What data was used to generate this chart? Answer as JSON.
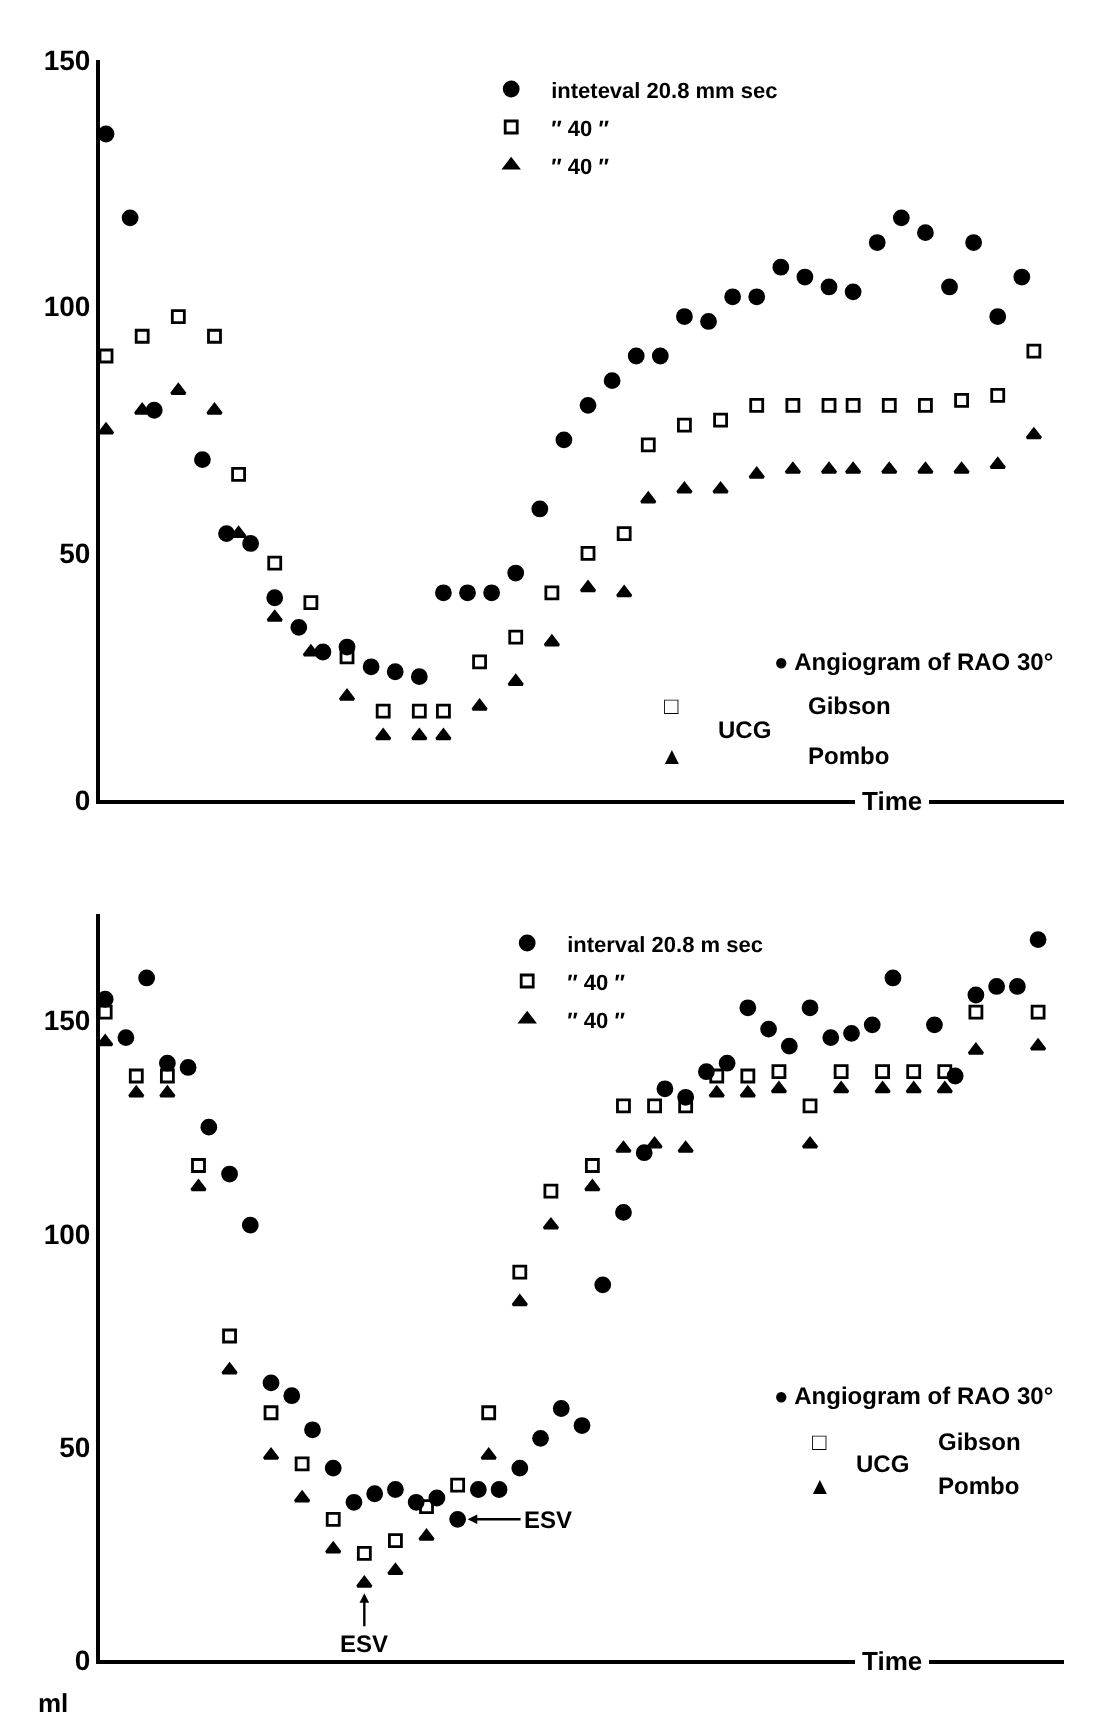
{
  "chart_data": [
    {
      "type": "scatter",
      "xlabel": "Time",
      "ylim": [
        0,
        150
      ],
      "yticks": [
        0,
        50,
        100,
        150
      ],
      "tick_labels": "y",
      "legend": "top",
      "categories": [
        null,
        null,
        null,
        null,
        null,
        null,
        null,
        null,
        null,
        null,
        null,
        null,
        null,
        null,
        null,
        null,
        null,
        null,
        null,
        null,
        null,
        null,
        null,
        null,
        null,
        null,
        null,
        null,
        null,
        null,
        null,
        null,
        null,
        null,
        null,
        null,
        null,
        null,
        null,
        null,
        null,
        null,
        null,
        null,
        null,
        null,
        null,
        null,
        null,
        null,
        null,
        null,
        null,
        null,
        null,
        null,
        null,
        null,
        null,
        null,
        null,
        null,
        null,
        null,
        null,
        null,
        null,
        null,
        null,
        null,
        null,
        null,
        null,
        null,
        null,
        null,
        null,
        null,
        null,
        null
      ],
      "series": [
        {
          "name": "inteteval 20.8 mm sec",
          "color": "#000000",
          "marker": "circle",
          "values": [
            135,
            null,
            118,
            null,
            79,
            null,
            null,
            null,
            69,
            null,
            54,
            null,
            52,
            null,
            41,
            null,
            35,
            null,
            30,
            null,
            31,
            null,
            27,
            null,
            26,
            null,
            25,
            null,
            42,
            null,
            42,
            null,
            42,
            null,
            46,
            null,
            59,
            null,
            73,
            null,
            80,
            null,
            85,
            null,
            90,
            null,
            90,
            null,
            98,
            null,
            97,
            null,
            102,
            null,
            102,
            null,
            108,
            null,
            106,
            null,
            104,
            null,
            103,
            null,
            113,
            null,
            118,
            null,
            115,
            null,
            104,
            null,
            113,
            null,
            98,
            null,
            106,
            null,
            null,
            null
          ]
        },
        {
          "name": "″ 40 ″",
          "color": "#000000",
          "marker": "square",
          "values": [
            90,
            null,
            null,
            94,
            null,
            null,
            98,
            null,
            null,
            94,
            null,
            66,
            null,
            null,
            48,
            null,
            null,
            40,
            null,
            null,
            29,
            null,
            null,
            18,
            null,
            null,
            18,
            null,
            18,
            null,
            null,
            28,
            null,
            null,
            33,
            null,
            null,
            42,
            null,
            null,
            50,
            null,
            null,
            54,
            null,
            72,
            null,
            null,
            76,
            null,
            null,
            77,
            null,
            null,
            80,
            null,
            null,
            80,
            null,
            null,
            80,
            null,
            80,
            null,
            null,
            80,
            null,
            null,
            80,
            null,
            null,
            81,
            null,
            null,
            82,
            null,
            null,
            91,
            null,
            null
          ]
        },
        {
          "name": "″ 40 ″",
          "color": "#000000",
          "marker": "triangle",
          "values": [
            75,
            null,
            null,
            79,
            null,
            null,
            83,
            null,
            null,
            79,
            null,
            54,
            null,
            null,
            37,
            null,
            null,
            30,
            null,
            null,
            21,
            null,
            null,
            13,
            null,
            null,
            13,
            null,
            13,
            null,
            null,
            19,
            null,
            null,
            24,
            null,
            null,
            32,
            null,
            null,
            43,
            null,
            null,
            42,
            null,
            61,
            null,
            null,
            63,
            null,
            null,
            63,
            null,
            null,
            66,
            null,
            null,
            67,
            null,
            null,
            67,
            null,
            67,
            null,
            null,
            67,
            null,
            null,
            67,
            null,
            null,
            67,
            null,
            null,
            68,
            null,
            null,
            74,
            null,
            null
          ]
        }
      ],
      "annotations": [
        "● Angiogram of RAO 30°",
        "□",
        "▲",
        "UCG",
        "Gibson",
        "Pombo"
      ]
    },
    {
      "type": "scatter",
      "xlabel": "Time",
      "ylabel": "ml",
      "ylim": [
        0,
        175
      ],
      "yticks": [
        0,
        50,
        100,
        150
      ],
      "tick_labels": "y",
      "legend": "top",
      "categories": [
        null,
        null,
        null,
        null,
        null,
        null,
        null,
        null,
        null,
        null,
        null,
        null,
        null,
        null,
        null,
        null,
        null,
        null,
        null,
        null,
        null,
        null,
        null,
        null,
        null,
        null,
        null,
        null,
        null,
        null,
        null,
        null,
        null,
        null,
        null,
        null,
        null,
        null,
        null,
        null,
        null,
        null,
        null,
        null,
        null,
        null,
        null,
        null,
        null,
        null,
        null,
        null,
        null,
        null,
        null,
        null,
        null,
        null,
        null,
        null,
        null,
        null,
        null,
        null,
        null,
        null,
        null,
        null,
        null,
        null,
        null,
        null,
        null,
        null,
        null,
        null,
        null,
        null,
        null,
        null,
        null,
        null,
        null,
        null,
        null,
        null,
        null,
        null,
        null,
        null,
        null,
        null,
        null
      ],
      "series": [
        {
          "name": "interval 20.8 m sec",
          "color": "#000000",
          "marker": "circle",
          "values": [
            155,
            null,
            146,
            null,
            160,
            null,
            140,
            null,
            139,
            null,
            125,
            null,
            114,
            null,
            102,
            null,
            65,
            null,
            62,
            null,
            54,
            null,
            45,
            null,
            37,
            null,
            39,
            null,
            40,
            null,
            37,
            null,
            38,
            null,
            33,
            null,
            40,
            null,
            40,
            null,
            45,
            null,
            52,
            null,
            59,
            null,
            55,
            null,
            88,
            null,
            105,
            null,
            119,
            null,
            134,
            null,
            132,
            null,
            138,
            null,
            140,
            null,
            153,
            null,
            148,
            null,
            144,
            null,
            153,
            null,
            146,
            null,
            147,
            null,
            149,
            null,
            160,
            null,
            null,
            null,
            149,
            null,
            137,
            null,
            156,
            null,
            158,
            null,
            158,
            null,
            169,
            null,
            null
          ]
        },
        {
          "name": "″ 40 ″",
          "color": "#000000",
          "marker": "square",
          "values": [
            152,
            null,
            null,
            137,
            null,
            null,
            137,
            null,
            null,
            116,
            null,
            null,
            76,
            null,
            null,
            null,
            58,
            null,
            null,
            46,
            null,
            null,
            33,
            null,
            null,
            25,
            null,
            null,
            28,
            null,
            null,
            36,
            null,
            null,
            41,
            null,
            null,
            58,
            null,
            null,
            91,
            null,
            null,
            110,
            null,
            null,
            null,
            116,
            null,
            null,
            130,
            null,
            null,
            130,
            null,
            null,
            130,
            null,
            null,
            137,
            null,
            null,
            137,
            null,
            null,
            138,
            null,
            null,
            130,
            null,
            null,
            138,
            null,
            null,
            null,
            138,
            null,
            null,
            138,
            null,
            null,
            138,
            null,
            null,
            152,
            null,
            null,
            null,
            null,
            null,
            152,
            null,
            null
          ]
        },
        {
          "name": "″ 40 ″",
          "color": "#000000",
          "marker": "triangle",
          "values": [
            145,
            null,
            null,
            133,
            null,
            null,
            133,
            null,
            null,
            111,
            null,
            null,
            68,
            null,
            null,
            null,
            48,
            null,
            null,
            38,
            null,
            null,
            26,
            null,
            null,
            18,
            null,
            null,
            21,
            null,
            null,
            29,
            null,
            null,
            null,
            null,
            null,
            48,
            null,
            null,
            84,
            null,
            null,
            102,
            null,
            null,
            null,
            111,
            null,
            null,
            120,
            null,
            null,
            121,
            null,
            null,
            120,
            null,
            null,
            133,
            null,
            null,
            133,
            null,
            null,
            134,
            null,
            null,
            121,
            null,
            null,
            134,
            null,
            null,
            null,
            134,
            null,
            null,
            134,
            null,
            null,
            134,
            null,
            null,
            143,
            null,
            null,
            null,
            null,
            null,
            144,
            null,
            null
          ]
        }
      ],
      "annotations": [
        "● Angiogram of RAO 30°",
        "□",
        "▲",
        "UCG",
        "Gibson",
        "Pombo",
        "ESV",
        "ESV"
      ]
    }
  ]
}
